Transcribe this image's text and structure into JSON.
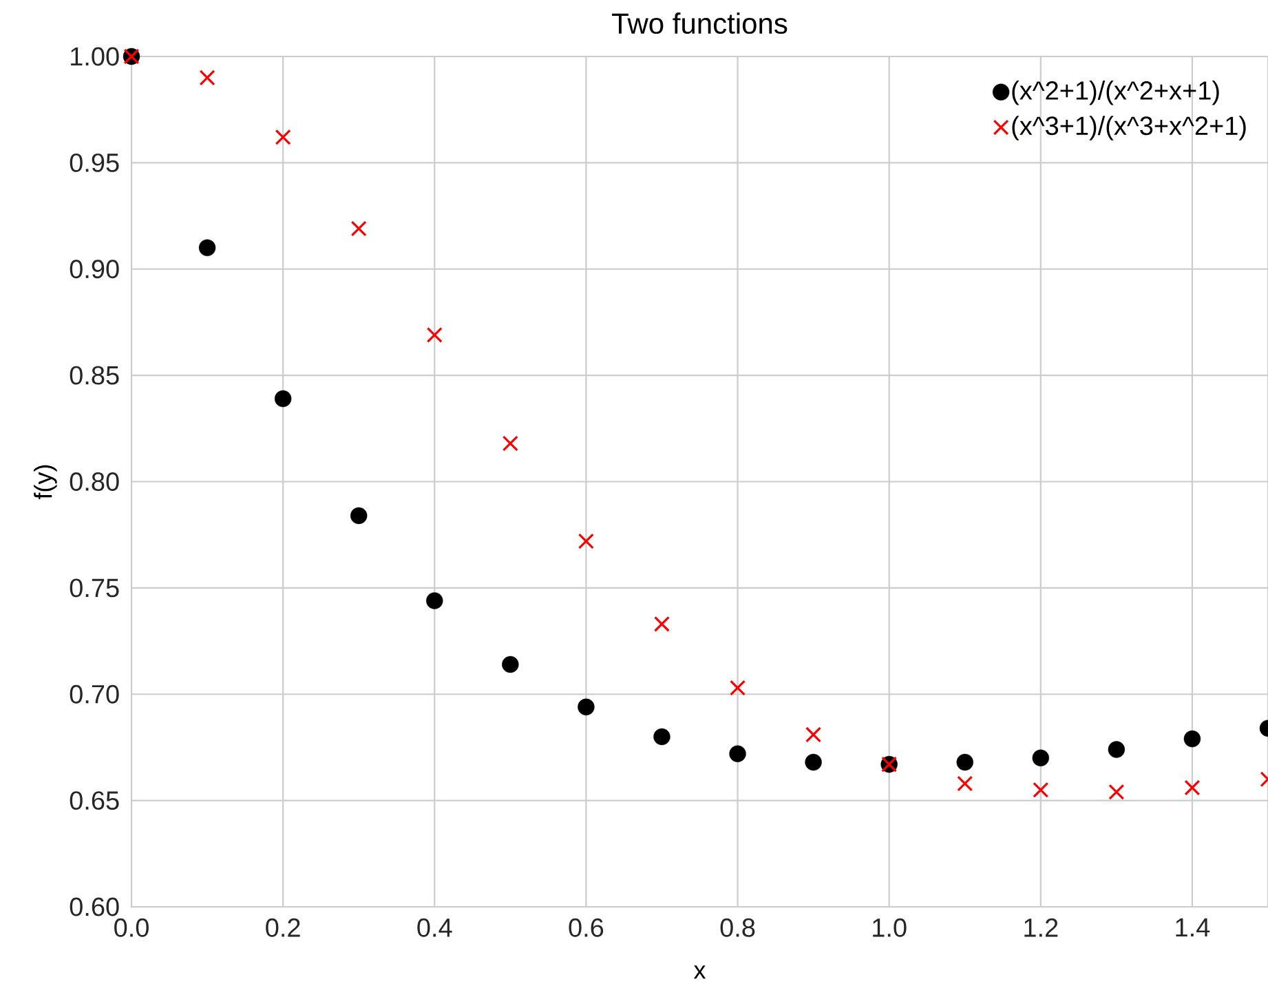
{
  "chart_data": {
    "type": "scatter",
    "title": "Two functions",
    "xlabel": "x",
    "ylabel": "f(y)",
    "x": [
      0,
      0.1,
      0.2,
      0.3,
      0.4,
      0.5,
      0.6,
      0.7,
      0.8,
      0.9,
      1.0,
      1.1,
      1.2,
      1.3,
      1.4,
      1.5
    ],
    "series": [
      {
        "name": "(x^2+1)/(x^2+x+1)",
        "color": "#000000",
        "marker": "circle",
        "values": [
          1.0,
          0.91,
          0.839,
          0.784,
          0.744,
          0.714,
          0.694,
          0.68,
          0.672,
          0.668,
          0.667,
          0.668,
          0.67,
          0.674,
          0.679,
          0.684
        ]
      },
      {
        "name": "(x^3+1)/(x^3+x^2+1)",
        "color": "#ff0000",
        "marker": "cross",
        "values": [
          1.0,
          0.99,
          0.962,
          0.919,
          0.869,
          0.818,
          0.772,
          0.733,
          0.703,
          0.681,
          0.667,
          0.658,
          0.655,
          0.654,
          0.656,
          0.66
        ]
      }
    ],
    "xlim": [
      0,
      1.5
    ],
    "ylim": [
      0.6,
      1.0
    ],
    "xticks": [
      {
        "value": 0,
        "label": "0.0"
      },
      {
        "value": 0.2,
        "label": "0.2"
      },
      {
        "value": 0.4,
        "label": "0.4"
      },
      {
        "value": 0.6,
        "label": "0.6"
      },
      {
        "value": 0.8,
        "label": "0.8"
      },
      {
        "value": 1.0,
        "label": "1.0"
      },
      {
        "value": 1.2,
        "label": "1.2"
      },
      {
        "value": 1.4,
        "label": "1.4"
      }
    ],
    "yticks": [
      {
        "value": 0.6,
        "label": "0.60"
      },
      {
        "value": 0.65,
        "label": "0.65"
      },
      {
        "value": 0.7,
        "label": "0.70"
      },
      {
        "value": 0.75,
        "label": "0.75"
      },
      {
        "value": 0.8,
        "label": "0.80"
      },
      {
        "value": 0.85,
        "label": "0.85"
      },
      {
        "value": 0.9,
        "label": "0.90"
      },
      {
        "value": 0.95,
        "label": "0.95"
      },
      {
        "value": 1.0,
        "label": "1.00"
      }
    ],
    "grid": true,
    "legend": "top right"
  }
}
